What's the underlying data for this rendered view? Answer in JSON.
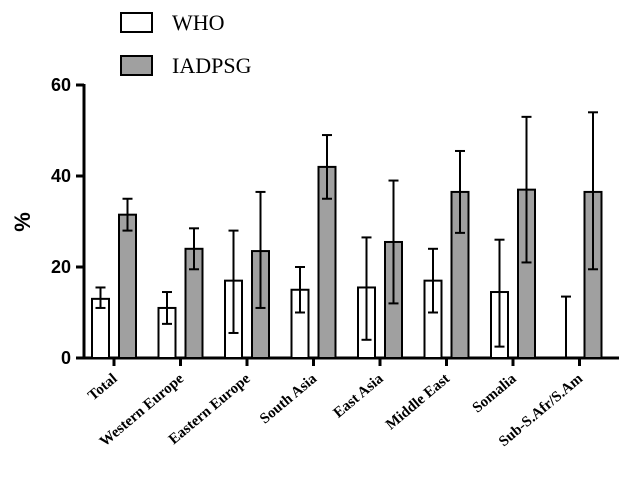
{
  "chart_data": {
    "type": "bar",
    "categories": [
      "Total",
      "Western Europe",
      "Eastern Europe",
      "South Asia",
      "East Asia",
      "Middle East",
      "Somalia",
      "Sub-S.Afr/S.Am"
    ],
    "series": [
      {
        "name": "WHO",
        "color": "#ffffff",
        "values": [
          13,
          11,
          17,
          15,
          15.5,
          17,
          14.5,
          0
        ],
        "error_low": [
          11,
          7.5,
          5.5,
          10,
          4,
          10,
          2.5,
          0
        ],
        "error_high": [
          15.5,
          14.5,
          28,
          20,
          26.5,
          24,
          26,
          13.5
        ]
      },
      {
        "name": "IADPSG",
        "color": "#a0a0a0",
        "values": [
          31.5,
          24,
          23.5,
          42,
          25.5,
          36.5,
          37,
          36.5
        ],
        "error_low": [
          28,
          19.5,
          11,
          35,
          12,
          27.5,
          21,
          19.5
        ],
        "error_high": [
          35,
          28.5,
          36.5,
          49,
          39,
          45.5,
          53,
          54
        ]
      }
    ],
    "ylabel": "%",
    "xlabel": "",
    "ylim": [
      0,
      60
    ],
    "yticks": [
      0,
      20,
      40,
      60
    ],
    "legend_position": "top-left"
  }
}
